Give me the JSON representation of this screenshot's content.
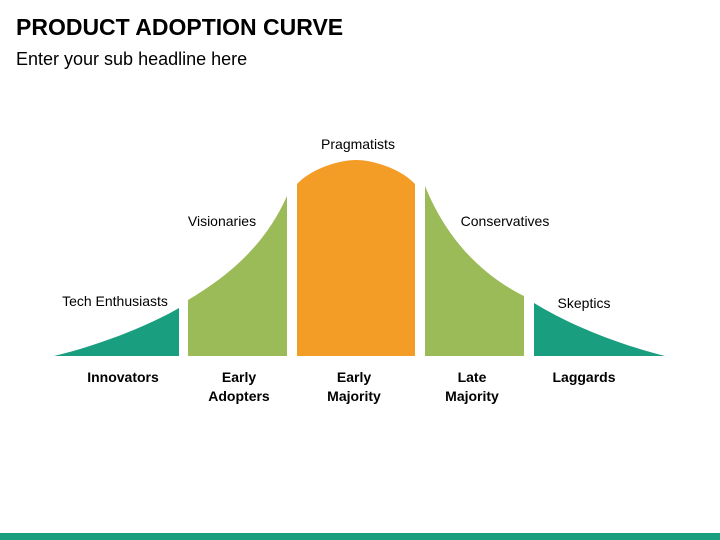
{
  "header": {
    "title": "PRODUCT ADOPTION CURVE",
    "subtitle": "Enter your sub headline here"
  },
  "segments": [
    {
      "label": "Tech Enthusiasts",
      "category": [
        "Innovators"
      ],
      "color": "#1a9e80"
    },
    {
      "label": "Visionaries",
      "category": [
        "Early",
        "Adopters"
      ],
      "color": "#9bbb59"
    },
    {
      "label": "Pragmatists",
      "category": [
        "Early",
        "Majority"
      ],
      "color": "#f39c26"
    },
    {
      "label": "Conservatives",
      "category": [
        "Late",
        "Majority"
      ],
      "color": "#9bbb59"
    },
    {
      "label": "Skeptics",
      "category": [
        "Laggards"
      ],
      "color": "#1a9e80"
    }
  ],
  "footer": {
    "color": "#1a9e80"
  }
}
